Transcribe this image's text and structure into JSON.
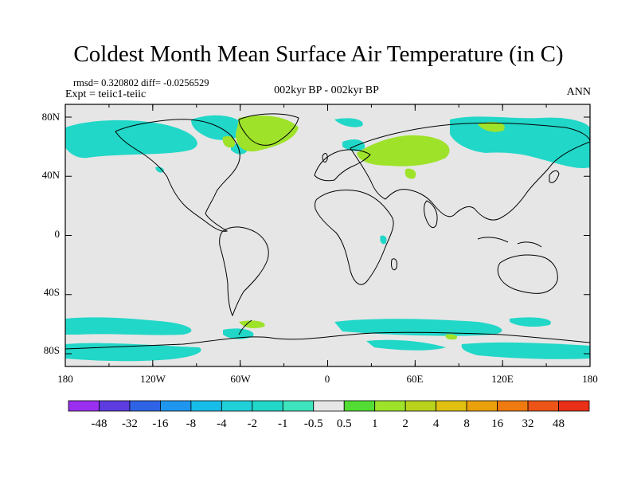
{
  "title": "Coldest Month Mean Surface Air Temperature (in C)",
  "stats": "rmsd= 0.320802 diff= -0.0256529",
  "experiment": "Expt = teiic1-teiic",
  "period": "002kyr BP - 002kyr BP",
  "season": "ANN",
  "y_ticks": [
    "80N",
    "40N",
    "0",
    "40S",
    "80S"
  ],
  "x_ticks": [
    "180",
    "120W",
    "60W",
    "0",
    "60E",
    "120E",
    "180"
  ],
  "colorbar": {
    "labels": [
      "-48",
      "-32",
      "-16",
      "-8",
      "-4",
      "-2",
      "-1",
      "-0.5",
      "0.5",
      "1",
      "2",
      "4",
      "8",
      "16",
      "32",
      "48"
    ],
    "colors": [
      "#9b2ff0",
      "#5d3ce0",
      "#2f63e6",
      "#1e96ee",
      "#18bce8",
      "#1fd0d8",
      "#21d7c8",
      "#3ee4bd",
      "#e6e6e6",
      "#52dc34",
      "#9ee22a",
      "#b8d21e",
      "#e0c010",
      "#eaa00c",
      "#ee7a10",
      "#ec5418",
      "#e83018"
    ]
  },
  "colors": {
    "background": "#e6e6e6",
    "cooling": "#21d7c8",
    "warming": "#9ee22a",
    "coast": "#000000"
  }
}
